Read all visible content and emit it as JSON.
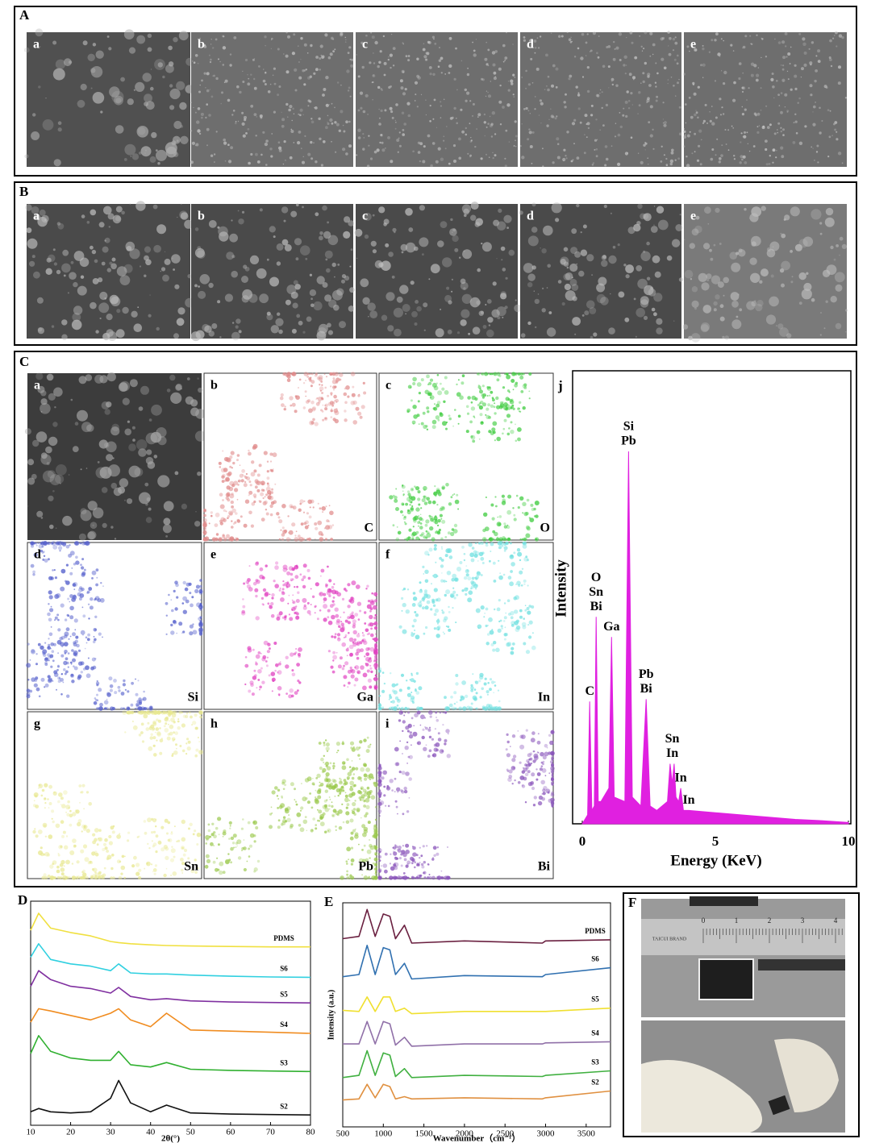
{
  "panels": {
    "A": {
      "label": "A",
      "images": [
        "a",
        "b",
        "c",
        "d",
        "e"
      ]
    },
    "B": {
      "label": "B",
      "images": [
        "a",
        "b",
        "c",
        "d",
        "e"
      ]
    },
    "C": {
      "label": "C",
      "j": "j",
      "maps": [
        {
          "label": "a"
        },
        {
          "label": "b",
          "element": "C",
          "color": "#e08a8a"
        },
        {
          "label": "c",
          "element": "O",
          "color": "#3fcc3f"
        },
        {
          "label": "d",
          "element": "Si",
          "color": "#5560cc"
        },
        {
          "label": "e",
          "element": "Ga",
          "color": "#e040c0"
        },
        {
          "label": "f",
          "element": "In",
          "color": "#6fe0e0"
        },
        {
          "label": "g",
          "element": "Sn",
          "color": "#e8e890"
        },
        {
          "label": "h",
          "element": "Pb",
          "color": "#99c84a"
        },
        {
          "label": "i",
          "element": "Bi",
          "color": "#8a55bb"
        }
      ]
    },
    "D": {
      "label": "D"
    },
    "E": {
      "label": "E"
    },
    "F": {
      "label": "F",
      "ruler": [
        "0",
        "1",
        "2",
        "3",
        "4"
      ],
      "brand": "TAICUI BRAND"
    }
  },
  "chart_data": [
    {
      "type": "area",
      "ylabel": "Intensity",
      "xlabel": "Energy (KeV)",
      "xlim": [
        0,
        10
      ],
      "xticks": [
        0,
        5,
        10
      ],
      "ylim": [
        0,
        100
      ],
      "color": "#e020e0",
      "x": [
        0,
        0.2,
        0.28,
        0.36,
        0.45,
        0.52,
        0.6,
        0.7,
        1.0,
        1.1,
        1.2,
        1.6,
        1.74,
        1.88,
        2.2,
        2.4,
        2.55,
        2.8,
        3.2,
        3.3,
        3.38,
        3.45,
        3.52,
        3.62,
        3.7,
        3.8,
        4.0,
        5,
        6,
        7,
        8,
        9,
        10
      ],
      "values": [
        0,
        2,
        27.5,
        3,
        4,
        46.5,
        5,
        5,
        8,
        42,
        6,
        5,
        83.7,
        6,
        4,
        28,
        4,
        3,
        5,
        13.5,
        9,
        13.5,
        6,
        5,
        8,
        3,
        3,
        2.5,
        2,
        1.5,
        1,
        0.7,
        0.3
      ],
      "annotations": [
        {
          "x": 0.28,
          "lines": [
            "C"
          ]
        },
        {
          "x": 0.52,
          "lines": [
            "O",
            "Sn",
            "Bi"
          ]
        },
        {
          "x": 1.1,
          "lines": [
            "Ga"
          ]
        },
        {
          "x": 1.74,
          "lines": [
            "Si",
            "Pb"
          ]
        },
        {
          "x": 2.4,
          "lines": [
            "Pb",
            "Bi"
          ]
        },
        {
          "x": 3.38,
          "lines": [
            "Sn",
            "In"
          ]
        },
        {
          "x": 3.7,
          "lines": [
            "In"
          ]
        },
        {
          "x": 4.0,
          "lines": [
            "In"
          ]
        }
      ]
    },
    {
      "type": "line",
      "xlabel": "2θ(°)",
      "xlim": [
        10,
        80
      ],
      "xticks": [
        10,
        20,
        30,
        40,
        50,
        60,
        70,
        80
      ],
      "ylim": [
        0,
        100
      ],
      "x": [
        10,
        12,
        15,
        20,
        25,
        30,
        32,
        35,
        40,
        44,
        50,
        60,
        70,
        80
      ],
      "series": [
        {
          "name": "PDMS",
          "color": "#f0e040",
          "values": [
            87,
            94.6,
            88,
            86,
            84.5,
            82,
            81.5,
            81,
            80.5,
            80.2,
            80,
            79.8,
            79.6,
            79.6
          ]
        },
        {
          "name": "S6",
          "color": "#30d0e0",
          "values": [
            75,
            81,
            74,
            72,
            71,
            69,
            72,
            68,
            67.5,
            67.5,
            67,
            66.5,
            66.2,
            66
          ]
        },
        {
          "name": "S5",
          "color": "#8030a0",
          "values": [
            62,
            69,
            65,
            62,
            61,
            59,
            61.5,
            57.5,
            56,
            56.5,
            55.5,
            55,
            54.8,
            54.6
          ]
        },
        {
          "name": "S4",
          "color": "#f08c20",
          "values": [
            46,
            52,
            51,
            49,
            47,
            50,
            52,
            47,
            44,
            50,
            42.5,
            42,
            41.5,
            41
          ]
        },
        {
          "name": "S3",
          "color": "#30b030",
          "values": [
            32,
            40,
            33,
            30,
            29,
            29,
            33,
            27,
            26,
            28,
            25,
            24.5,
            24.2,
            24
          ]
        },
        {
          "name": "S2",
          "color": "#111111",
          "values": [
            6,
            7.5,
            6,
            5.5,
            6,
            12,
            20,
            10,
            6,
            9,
            5.5,
            5,
            4.8,
            4.6
          ]
        }
      ]
    },
    {
      "type": "line",
      "ylabel": "Intensity (a.u.)",
      "xlabel": "Wavenumber（cm⁻¹）",
      "xlim": [
        500,
        3800
      ],
      "xticks": [
        500,
        1000,
        1500,
        2000,
        2500,
        3000,
        3500
      ],
      "ylim": [
        0,
        100
      ],
      "x": [
        500,
        700,
        800,
        900,
        1000,
        1080,
        1150,
        1260,
        1350,
        2000,
        2960,
        3000,
        3800
      ],
      "series": [
        {
          "name": "PDMS",
          "color": "#6a2040",
          "values": [
            84,
            85,
            97,
            85,
            95,
            94,
            84,
            90,
            82,
            83,
            82,
            83,
            83.5
          ]
        },
        {
          "name": "S6",
          "color": "#3070b0",
          "values": [
            67,
            68,
            81,
            68,
            80,
            79,
            68,
            73,
            66,
            67.5,
            67,
            68,
            71
          ]
        },
        {
          "name": "S5",
          "color": "#f0e030",
          "values": [
            52,
            51.5,
            58,
            51.5,
            58,
            58,
            51.5,
            53,
            50.5,
            51.5,
            51.5,
            51.5,
            53
          ]
        },
        {
          "name": "S4",
          "color": "#9070a8",
          "values": [
            37,
            37,
            47,
            37,
            47,
            46,
            36.5,
            40,
            36,
            37,
            37,
            37.5,
            38
          ]
        },
        {
          "name": "S3",
          "color": "#40b040",
          "values": [
            22,
            23,
            34,
            23,
            33,
            32,
            22.5,
            26,
            22,
            23,
            22.5,
            23,
            25
          ]
        },
        {
          "name": "S2",
          "color": "#e09040",
          "values": [
            12,
            12.5,
            19,
            13,
            19,
            18,
            12.5,
            13.5,
            12.5,
            13,
            12.5,
            13,
            16
          ]
        }
      ]
    }
  ]
}
